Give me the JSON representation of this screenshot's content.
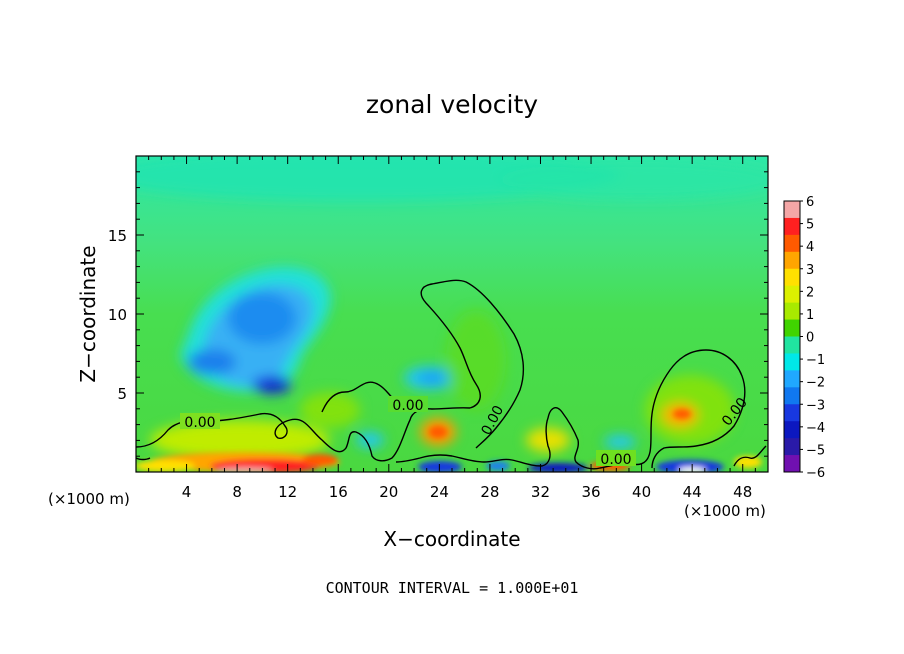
{
  "chart_data": {
    "type": "heatmap",
    "title": "zonal velocity",
    "xlabel": "X−coordinate",
    "ylabel": "Z−coordinate",
    "x_unit_left": "(×1000 m)",
    "x_unit_right": "(×1000 m)",
    "xlim": [
      0,
      50
    ],
    "ylim": [
      0,
      20
    ],
    "x_ticks": [
      4,
      8,
      12,
      16,
      20,
      24,
      28,
      32,
      36,
      40,
      44,
      48
    ],
    "x_tick_labels": [
      "4",
      "8",
      "12",
      "16",
      "20",
      "24",
      "28",
      "32",
      "36",
      "40",
      "44",
      "48"
    ],
    "y_ticks": [
      5,
      10,
      15
    ],
    "y_tick_labels": [
      "5",
      "10",
      "15"
    ],
    "colorbar": {
      "min": -6,
      "max": 6,
      "tick_labels": [
        "6",
        "5",
        "4",
        "3",
        "2",
        "1",
        "0",
        "−1",
        "−2",
        "−3",
        "−4",
        "−5",
        "−6"
      ],
      "colors": [
        "#f4a6a6",
        "#ff2020",
        "#ff5a00",
        "#ffa500",
        "#ffe000",
        "#dcf000",
        "#a8ea00",
        "#40d400",
        "#20e4a0",
        "#00e8e8",
        "#20a8ff",
        "#1078f0",
        "#1838e0",
        "#0c18c0",
        "#2a1aa8",
        "#7010b0"
      ]
    },
    "contour_labels": [
      "0.00",
      "0.00",
      "0.00",
      "0.00",
      "0.00"
    ],
    "footnote": "CONTOUR INTERVAL = 1.000E+01"
  }
}
